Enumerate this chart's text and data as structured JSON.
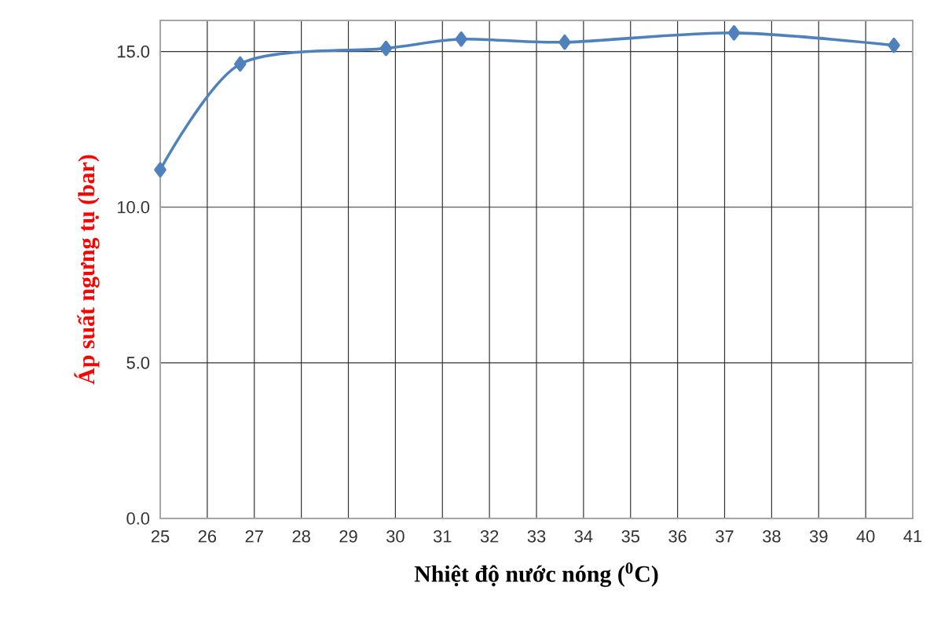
{
  "chart_data": {
    "type": "line",
    "xlabel": "Nhiệt độ nước nóng ($^{0}$C)",
    "ylabel": "Áp suất ngưng tụ (bar)",
    "series": [
      {
        "color": "#4f81bd",
        "x": [
          25,
          26.7,
          29.8,
          31.4,
          33.6,
          37.2,
          40.6
        ],
        "values": [
          11.2,
          14.6,
          15.1,
          15.4,
          15.3,
          15.6,
          15.2
        ]
      }
    ],
    "xlim": [
      25,
      41
    ],
    "xticks": [
      25,
      26,
      27,
      28,
      29,
      30,
      31,
      32,
      33,
      34,
      35,
      36,
      37,
      38,
      39,
      40,
      41
    ],
    "ylim": [
      0,
      16
    ],
    "yticks": [
      {
        "value": 0,
        "label": "0.0"
      },
      {
        "value": 5,
        "label": "5.0"
      },
      {
        "value": 10,
        "label": "10.0"
      },
      {
        "value": 15,
        "label": "15.0"
      }
    ],
    "grid": true,
    "marker": "diamond",
    "line_style": "solid"
  }
}
